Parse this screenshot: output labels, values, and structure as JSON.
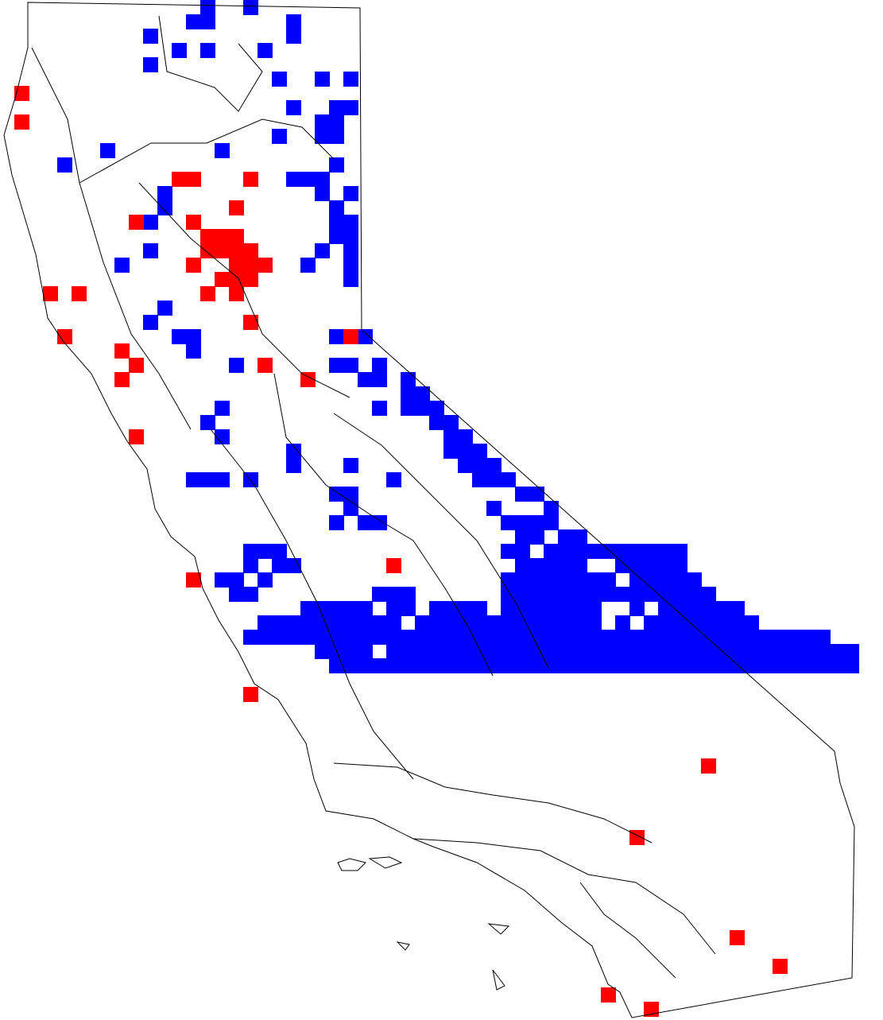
{
  "map": {
    "region": "California",
    "colors": {
      "background": "#ffffff",
      "outline": "#000000",
      "present": "#0000ff",
      "highlight": "#ff0000"
    },
    "legend": null
  }
}
